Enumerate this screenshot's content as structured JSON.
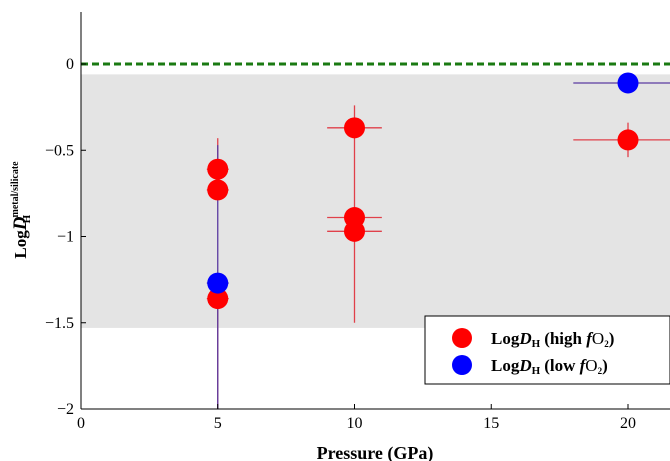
{
  "chart_data": {
    "type": "scatter",
    "xlabel": "Pressure (GPa)",
    "ylabel": {
      "main": "Log",
      "var": "D",
      "sub": "H",
      "sup": "metal/silicate"
    },
    "xlim": [
      0,
      22
    ],
    "ylim": [
      -2,
      0.3
    ],
    "x_ticks": [
      "0",
      "5",
      "10",
      "15",
      "20"
    ],
    "y_ticks": [
      "0",
      "−0.5",
      "−1",
      "−1.5",
      "−2"
    ],
    "x_tick_values": [
      0,
      5,
      10,
      15,
      20
    ],
    "y_tick_values": [
      0,
      -0.5,
      -1,
      -1.5,
      -2
    ],
    "reference_line": {
      "y": 0,
      "style": "dashed",
      "color": "#1a7a12"
    },
    "shaded_band": {
      "y_min": -1.53,
      "y_max": -0.06,
      "color": "#e4e4e4"
    },
    "legend_placement": "bottom-right",
    "series": [
      {
        "name_parts": {
          "log": "Log",
          "var": "D",
          "sub": "H",
          "cond": "(high ",
          "f": "f",
          "o": "O",
          "o_sub": "2",
          "close": ")"
        },
        "color": "#ff0000",
        "errorbar_color": "#e0404a",
        "points": [
          {
            "x": 5,
            "y": -0.61,
            "xerr": 0.4,
            "yerr_lo": 0.06,
            "yerr_hi": 0.18
          },
          {
            "x": 5,
            "y": -0.73,
            "xerr": 0.4,
            "yerr_lo": 0.05,
            "yerr_hi": 0.05
          },
          {
            "x": 5,
            "y": -1.36,
            "xerr": 0.4,
            "yerr_lo": 0.64,
            "yerr_hi": 0.05
          },
          {
            "x": 10,
            "y": -0.37,
            "xerr": 1.0,
            "yerr_lo": 1.13,
            "yerr_hi": 0.13
          },
          {
            "x": 10,
            "y": -0.89,
            "xerr": 1.0,
            "yerr_lo": 0.05,
            "yerr_hi": 0.05
          },
          {
            "x": 10,
            "y": -0.97,
            "xerr": 1.0,
            "yerr_lo": 0.05,
            "yerr_hi": 0.05
          },
          {
            "x": 20,
            "y": -0.44,
            "xerr": 2.0,
            "yerr_lo": 0.1,
            "yerr_hi": 0.1
          }
        ]
      },
      {
        "name_parts": {
          "log": "Log",
          "var": "D",
          "sub": "H",
          "cond": "(low ",
          "f": "f",
          "o": "O",
          "o_sub": "2",
          "close": ")"
        },
        "color": "#0000ff",
        "errorbar_color": "#5a3aa0",
        "points": [
          {
            "x": 5,
            "y": -1.27,
            "xerr": 0.4,
            "yerr_lo": 0.73,
            "yerr_hi": 0.8
          },
          {
            "x": 20,
            "y": -0.11,
            "xerr": 2.0,
            "yerr_lo": 0.02,
            "yerr_hi": 0.02
          }
        ]
      }
    ]
  }
}
